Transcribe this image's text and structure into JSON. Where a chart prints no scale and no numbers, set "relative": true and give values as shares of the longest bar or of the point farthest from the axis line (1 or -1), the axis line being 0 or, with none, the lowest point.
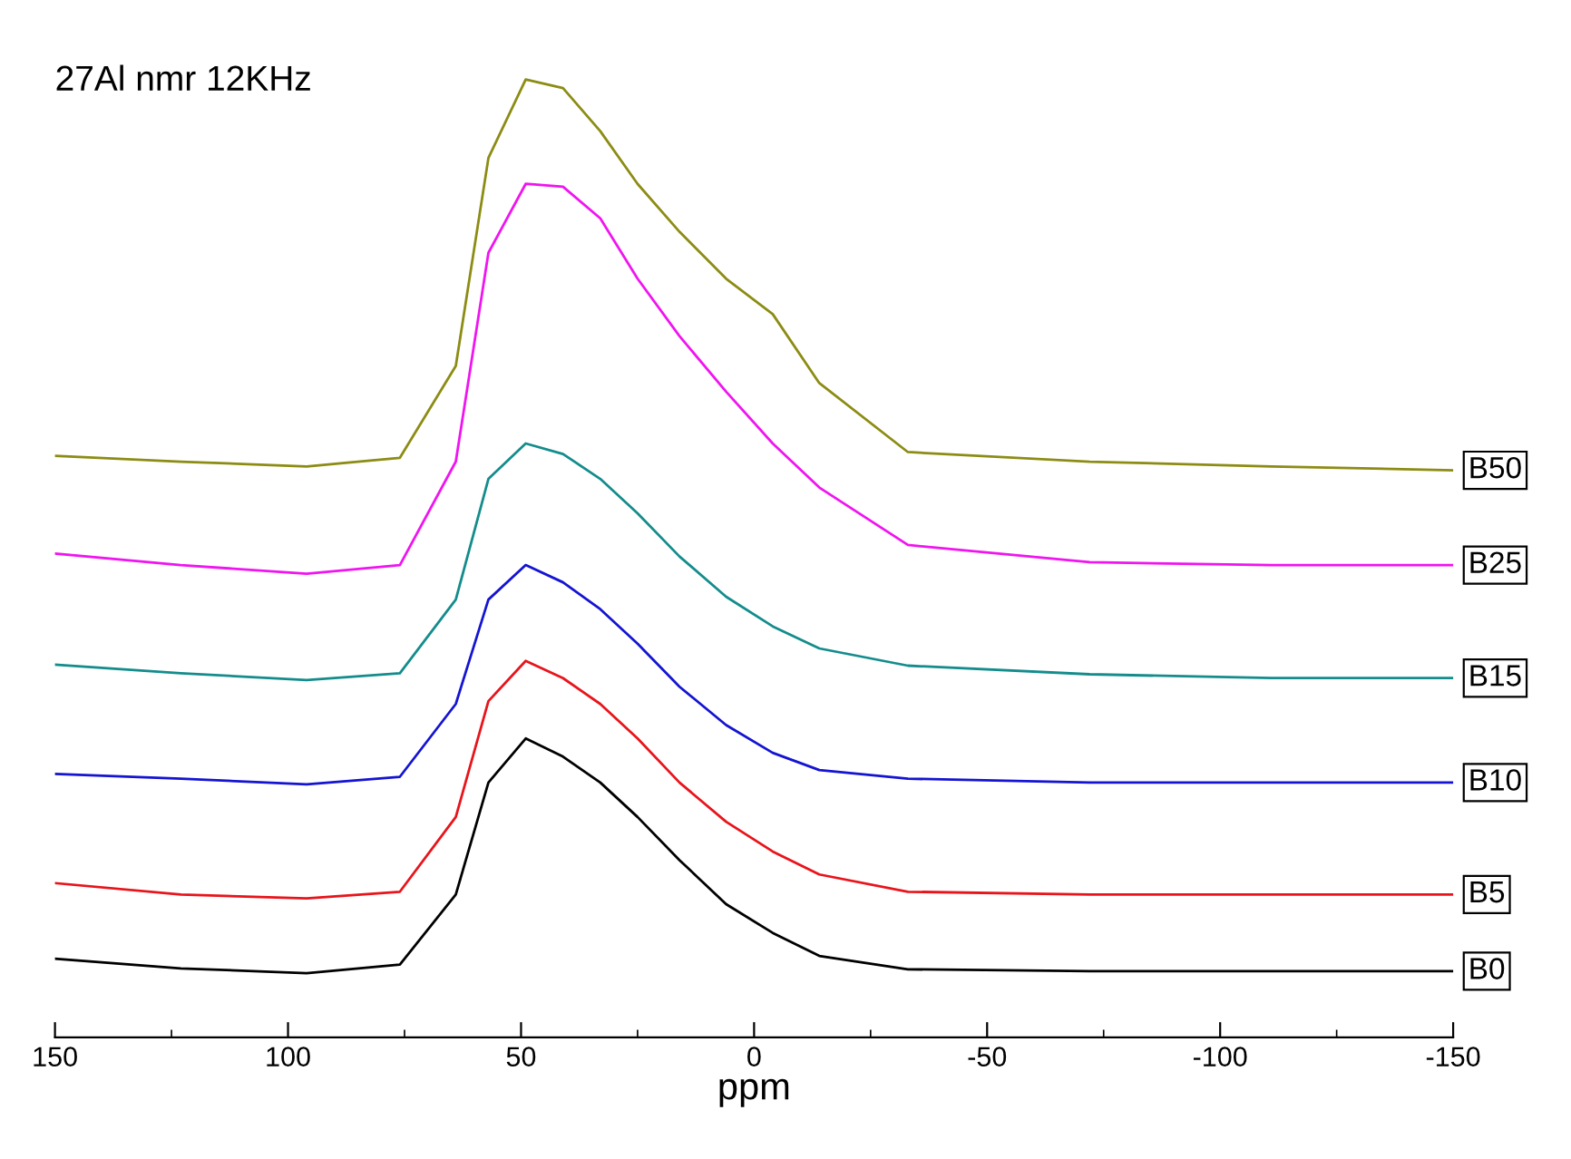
{
  "chart_data": {
    "type": "line",
    "relative": true,
    "xlabel": "ppm",
    "annotations": [
      "27Al nmr 12KHz"
    ],
    "x": [
      150,
      123,
      96,
      76,
      64,
      57,
      49,
      41,
      33,
      25,
      16,
      6,
      -4,
      -14,
      -33,
      -72,
      -111,
      -150
    ],
    "xlim": [
      150,
      -150
    ],
    "xticks": [
      150,
      100,
      50,
      0,
      -50,
      -100,
      -150
    ],
    "grid": false,
    "legend": false,
    "series": [
      {
        "name": "B0",
        "color": "#000000",
        "values": [
          0.082,
          0.072,
          0.067,
          0.076,
          0.149,
          0.266,
          0.312,
          0.293,
          0.266,
          0.23,
          0.185,
          0.139,
          0.109,
          0.085,
          0.071,
          0.069,
          0.069,
          0.069
        ]
      },
      {
        "name": "B5",
        "color": "#e8141b",
        "values": [
          0.161,
          0.149,
          0.145,
          0.152,
          0.23,
          0.351,
          0.393,
          0.375,
          0.348,
          0.312,
          0.266,
          0.225,
          0.194,
          0.17,
          0.152,
          0.149,
          0.149,
          0.149
        ]
      },
      {
        "name": "B10",
        "color": "#1414d2",
        "values": [
          0.275,
          0.27,
          0.264,
          0.272,
          0.348,
          0.457,
          0.493,
          0.475,
          0.447,
          0.411,
          0.366,
          0.326,
          0.297,
          0.279,
          0.27,
          0.266,
          0.266,
          0.266
        ]
      },
      {
        "name": "B15",
        "color": "#148c8c",
        "values": [
          0.389,
          0.38,
          0.373,
          0.38,
          0.457,
          0.583,
          0.62,
          0.609,
          0.583,
          0.547,
          0.502,
          0.46,
          0.429,
          0.406,
          0.388,
          0.379,
          0.375,
          0.375
        ]
      },
      {
        "name": "B25",
        "color": "#f014f0",
        "values": [
          0.505,
          0.493,
          0.484,
          0.493,
          0.601,
          0.819,
          0.891,
          0.888,
          0.855,
          0.792,
          0.732,
          0.674,
          0.62,
          0.574,
          0.514,
          0.496,
          0.493,
          0.493
        ]
      },
      {
        "name": "B50",
        "color": "#8c8c14",
        "values": [
          0.607,
          0.601,
          0.596,
          0.605,
          0.701,
          0.918,
          1.0,
          0.991,
          0.946,
          0.891,
          0.841,
          0.792,
          0.755,
          0.683,
          0.611,
          0.601,
          0.596,
          0.592
        ]
      }
    ]
  }
}
